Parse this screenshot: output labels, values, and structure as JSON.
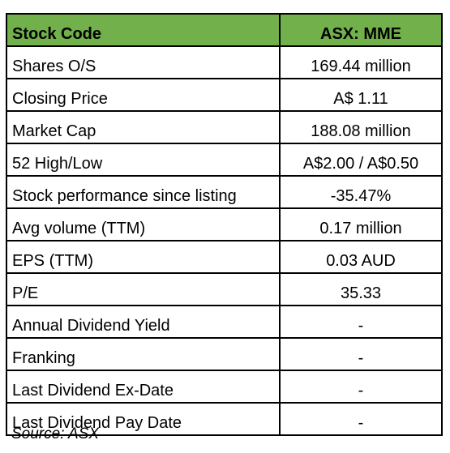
{
  "table": {
    "header": {
      "label": "Stock Code",
      "value": "ASX: MME"
    },
    "rows": [
      {
        "label": "Shares O/S",
        "value": "169.44 million"
      },
      {
        "label": "Closing Price",
        "value": "A$ 1.11"
      },
      {
        "label": "Market Cap",
        "value": "188.08 million"
      },
      {
        "label": "52 High/Low",
        "value": "A$2.00 / A$0.50"
      },
      {
        "label": "Stock performance since listing",
        "value": "-35.47%"
      },
      {
        "label": "Avg volume (TTM)",
        "value": "0.17 million"
      },
      {
        "label": "EPS (TTM)",
        "value": "0.03 AUD"
      },
      {
        "label": "P/E",
        "value": "35.33"
      },
      {
        "label": "Annual Dividend Yield",
        "value": "-"
      },
      {
        "label": "Franking",
        "value": "-"
      },
      {
        "label": "Last Dividend Ex-Date",
        "value": "-"
      },
      {
        "label": "Last Dividend Pay Date",
        "value": "-"
      }
    ]
  },
  "source": "Source: ASX",
  "colors": {
    "header_background": "#71b04a",
    "border": "#000000"
  }
}
